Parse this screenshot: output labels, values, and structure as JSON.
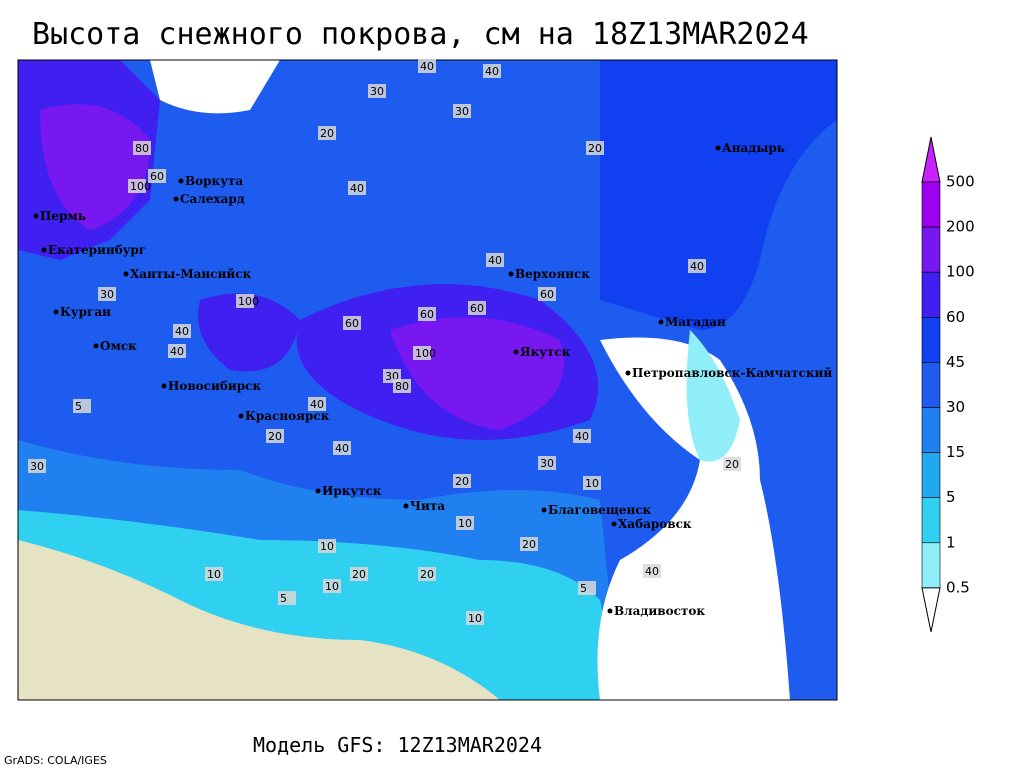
{
  "header": {
    "title": "Высота снежного покрова, см на 18Z13MAR2024"
  },
  "footer": {
    "model": "Модель GFS: 12Z13MAR2024",
    "credit": "GrADS: COLA/IGES"
  },
  "cities": [
    "Воркута",
    "Салехард",
    "Пермь",
    "Екатеринбург",
    "Ханты-Мансийск",
    "Курган",
    "Омск",
    "Новосибирск",
    "Красноярск",
    "Иркутск",
    "Чита",
    "Верхоянск",
    "Якутск",
    "Магадан",
    "Петропавловск-Камчатский",
    "Анадырь",
    "Благовещенск",
    "Хабаровск",
    "Владивосток"
  ],
  "contour_labels": [
    5,
    10,
    30,
    20,
    40,
    40,
    30,
    20,
    30,
    80,
    100,
    60,
    40,
    40,
    40,
    30,
    40,
    60,
    100,
    60,
    60,
    100,
    80,
    60,
    40,
    40,
    30,
    20,
    40,
    20,
    20,
    10,
    10,
    5,
    20,
    10,
    20,
    10,
    40,
    40,
    30,
    5,
    10,
    20
  ],
  "legend": {
    "levels": [
      500,
      200,
      100,
      60,
      45,
      30,
      15,
      5,
      1,
      0.5
    ],
    "colors": [
      "#c820ff",
      "#a000f0",
      "#7818f0",
      "#4020f0",
      "#1040f0",
      "#1e5cf0",
      "#2080f0",
      "#20a8f0",
      "#30d0f0",
      "#90eef8",
      "#ffffff"
    ]
  }
}
